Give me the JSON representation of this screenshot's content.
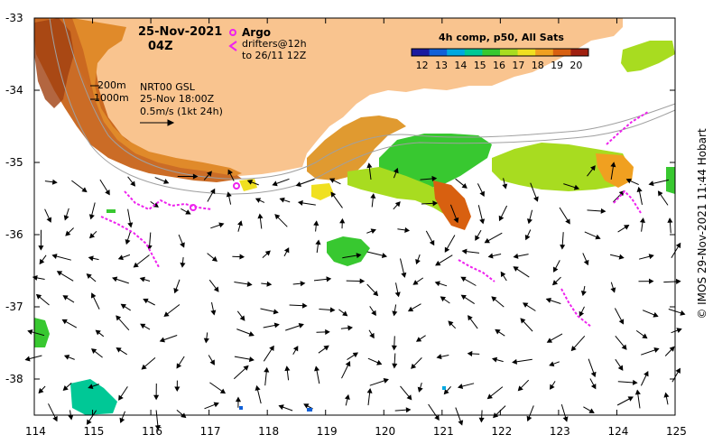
{
  "header": {
    "date": "25-Nov-2021",
    "time": "04Z"
  },
  "argo_legend": {
    "label": "Argo",
    "drifters_line1": "drifters@12h",
    "drifters_line2": "to 26/11 12Z",
    "color": "#ee22ee"
  },
  "isobaths": {
    "shallow": "200m",
    "deep": "1000m"
  },
  "product": {
    "line1": "NRT00 GSL",
    "line2": "25-Nov 18:00Z",
    "line3": "0.5m/s (1kt 24h)"
  },
  "colorbar": {
    "title": "4h comp, p50, All Sats",
    "ticks": [
      "12",
      "13",
      "14",
      "15",
      "16",
      "17",
      "18",
      "19",
      "20"
    ],
    "colors": [
      "#1a1aa0",
      "#1060d8",
      "#00a8e0",
      "#00c896",
      "#38c830",
      "#a8dc20",
      "#f0e020",
      "#f0a020",
      "#d86010",
      "#a02010"
    ]
  },
  "axes": {
    "lon_ticks": [
      "114",
      "115",
      "116",
      "117",
      "118",
      "119",
      "120",
      "121",
      "122",
      "123",
      "124",
      "125"
    ],
    "lat_ticks": [
      "-33",
      "-34",
      "-35",
      "-36",
      "-37",
      "-38"
    ],
    "lon_range": [
      114,
      125
    ],
    "lat_range": [
      -33,
      -38.5
    ]
  },
  "colors": {
    "land": "#f9c48f",
    "ocean": "#ffffff",
    "isobath": "#a0a0a0"
  },
  "credit": "© IMOS 29-Nov-2021 11:44 Hobart"
}
